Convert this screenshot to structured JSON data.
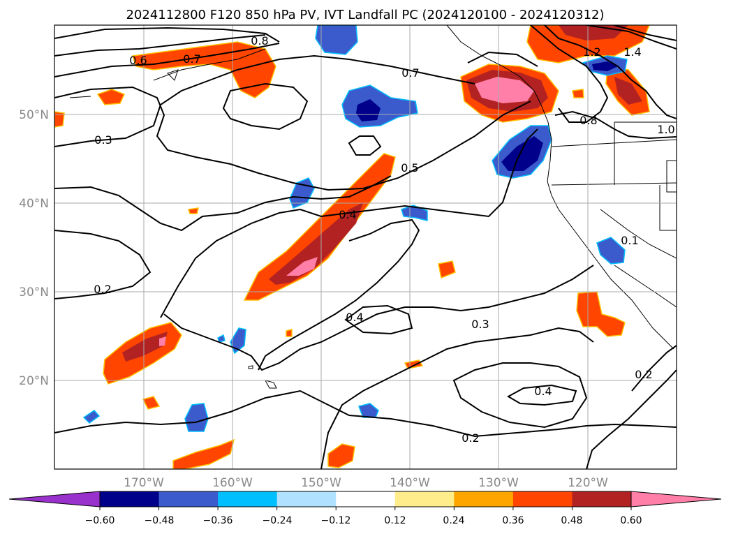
{
  "title": "2024112800 F120 850 hPa PV, IVT Landfall PC (2024120100 - 2024120312)",
  "lat_labels": [
    "50°N",
    "40°N",
    "30°N",
    "20°N"
  ],
  "lon_labels": [
    "170°W",
    "160°W",
    "150°W",
    "140°W",
    "130°W",
    "120°W"
  ],
  "colorbar": {
    "ticks": [
      "−0.60",
      "−0.48",
      "−0.36",
      "−0.24",
      "−0.12",
      "0.12",
      "0.24",
      "0.36",
      "0.48",
      "0.60"
    ],
    "colors": [
      "#9932cc",
      "#00008b",
      "#3b5bcc",
      "#00bfff",
      "#b0e2ff",
      "#ffffff",
      "#ffec8b",
      "#ffa500",
      "#ff4500",
      "#b22222",
      "#ff7fa8",
      "#ff7fa8"
    ]
  },
  "contour_labels": [
    "0.6",
    "0.7",
    "0.8",
    "0.7",
    "1.2",
    "1.4",
    "0.8",
    "1.0",
    "0.3",
    "0.5",
    "0.4",
    "0.1",
    "0.2",
    "0.4",
    "0.3",
    "0.4",
    "0.2",
    "0.2"
  ]
}
